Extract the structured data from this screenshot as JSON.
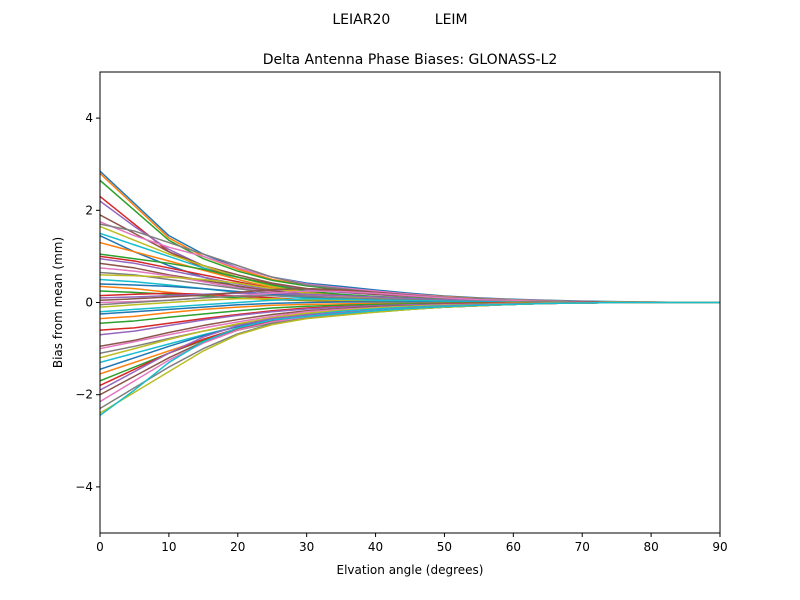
{
  "figure": {
    "suptitle": "LEIAR20          LEIM"
  },
  "chart_data": {
    "type": "line",
    "title": "Delta Antenna Phase Biases: GLONASS-L2",
    "xlabel": "Elvation angle (degrees)",
    "ylabel": "Bias from mean (mm)",
    "xlim": [
      0,
      90
    ],
    "ylim": [
      -5,
      5
    ],
    "xticks": [
      0,
      10,
      20,
      30,
      40,
      50,
      60,
      70,
      80,
      90
    ],
    "yticks": [
      -4,
      -2,
      0,
      2,
      4
    ],
    "ytick_labels": [
      "−4",
      "−2",
      "0",
      "2",
      "4"
    ],
    "grid": false,
    "legend": "none",
    "x": [
      0,
      5,
      10,
      15,
      20,
      25,
      30,
      35,
      40,
      45,
      50,
      55,
      60,
      65,
      70,
      75,
      80,
      85,
      90
    ],
    "colors": [
      "#1f77b4",
      "#ff7f0e",
      "#2ca02c",
      "#d62728",
      "#9467bd",
      "#8c564b",
      "#e377c2",
      "#7f7f7f",
      "#bcbd22",
      "#17becf"
    ],
    "series": [
      {
        "values": [
          2.85,
          2.15,
          1.45,
          1.05,
          0.75,
          0.55,
          0.42,
          0.35,
          0.27,
          0.2,
          0.14,
          0.1,
          0.07,
          0.05,
          0.03,
          0.02,
          0.01,
          0.0,
          0.0
        ]
      },
      {
        "values": [
          2.8,
          2.1,
          1.4,
          1.0,
          0.72,
          0.5,
          0.38,
          0.3,
          0.24,
          0.18,
          0.13,
          0.09,
          0.06,
          0.04,
          0.02,
          0.01,
          0.01,
          0.0,
          0.0
        ]
      },
      {
        "values": [
          2.65,
          2.0,
          1.35,
          0.95,
          0.68,
          0.48,
          0.36,
          0.28,
          0.22,
          0.17,
          0.12,
          0.08,
          0.06,
          0.04,
          0.02,
          0.01,
          0.0,
          0.0,
          0.0
        ]
      },
      {
        "values": [
          2.3,
          1.7,
          1.1,
          0.75,
          0.55,
          0.4,
          0.3,
          0.25,
          0.2,
          0.15,
          0.1,
          0.07,
          0.05,
          0.03,
          0.02,
          0.01,
          0.0,
          0.0,
          0.0
        ]
      },
      {
        "values": [
          2.2,
          1.65,
          1.15,
          0.8,
          0.55,
          0.38,
          0.28,
          0.22,
          0.17,
          0.13,
          0.09,
          0.06,
          0.04,
          0.03,
          0.02,
          0.01,
          0.0,
          0.0,
          0.0
        ]
      },
      {
        "values": [
          1.9,
          1.5,
          1.1,
          0.8,
          0.6,
          0.42,
          0.3,
          0.24,
          0.18,
          0.14,
          0.1,
          0.07,
          0.05,
          0.03,
          0.02,
          0.01,
          0.0,
          0.0,
          0.0
        ]
      },
      {
        "values": [
          1.75,
          1.45,
          1.2,
          1.0,
          0.75,
          0.55,
          0.4,
          0.32,
          0.25,
          0.18,
          0.12,
          0.08,
          0.06,
          0.04,
          0.02,
          0.01,
          0.0,
          0.0,
          0.0
        ]
      },
      {
        "values": [
          1.7,
          1.55,
          1.3,
          1.05,
          0.8,
          0.55,
          0.38,
          0.3,
          0.22,
          0.16,
          0.11,
          0.08,
          0.05,
          0.03,
          0.02,
          0.01,
          0.0,
          0.0,
          0.0
        ]
      },
      {
        "values": [
          1.65,
          1.35,
          1.05,
          0.8,
          0.55,
          0.35,
          0.22,
          0.17,
          0.13,
          0.1,
          0.07,
          0.05,
          0.04,
          0.02,
          0.01,
          0.01,
          0.0,
          0.0,
          0.0
        ]
      },
      {
        "values": [
          1.5,
          1.25,
          1.0,
          0.75,
          0.5,
          0.3,
          0.2,
          0.15,
          0.12,
          0.09,
          0.06,
          0.04,
          0.03,
          0.02,
          0.01,
          0.0,
          0.0,
          0.0,
          0.0
        ]
      },
      {
        "values": [
          1.45,
          1.1,
          0.8,
          0.55,
          0.35,
          0.22,
          0.16,
          0.12,
          0.1,
          0.08,
          0.05,
          0.04,
          0.03,
          0.02,
          0.01,
          0.0,
          0.0,
          0.0,
          0.0
        ]
      },
      {
        "values": [
          1.3,
          1.1,
          0.9,
          0.7,
          0.5,
          0.32,
          0.2,
          0.14,
          0.1,
          0.07,
          0.05,
          0.03,
          0.02,
          0.01,
          0.01,
          0.0,
          0.0,
          0.0,
          0.0
        ]
      },
      {
        "values": [
          1.05,
          0.95,
          0.85,
          0.72,
          0.55,
          0.38,
          0.25,
          0.18,
          0.13,
          0.1,
          0.07,
          0.05,
          0.03,
          0.02,
          0.01,
          0.0,
          0.0,
          0.0,
          0.0
        ]
      },
      {
        "values": [
          1.0,
          0.9,
          0.75,
          0.6,
          0.45,
          0.3,
          0.2,
          0.15,
          0.11,
          0.08,
          0.05,
          0.04,
          0.03,
          0.02,
          0.01,
          0.0,
          0.0,
          0.0,
          0.0
        ]
      },
      {
        "values": [
          0.95,
          0.85,
          0.7,
          0.55,
          0.4,
          0.28,
          0.18,
          0.13,
          0.1,
          0.07,
          0.05,
          0.03,
          0.02,
          0.01,
          0.01,
          0.0,
          0.0,
          0.0,
          0.0
        ]
      },
      {
        "values": [
          0.85,
          0.75,
          0.6,
          0.48,
          0.36,
          0.25,
          0.17,
          0.12,
          0.09,
          0.07,
          0.05,
          0.03,
          0.02,
          0.01,
          0.01,
          0.0,
          0.0,
          0.0,
          0.0
        ]
      },
      {
        "values": [
          0.75,
          0.68,
          0.58,
          0.45,
          0.32,
          0.22,
          0.15,
          0.11,
          0.08,
          0.06,
          0.04,
          0.03,
          0.02,
          0.01,
          0.0,
          0.0,
          0.0,
          0.0,
          0.0
        ]
      },
      {
        "values": [
          0.65,
          0.6,
          0.5,
          0.4,
          0.3,
          0.2,
          0.14,
          0.1,
          0.07,
          0.05,
          0.04,
          0.03,
          0.02,
          0.01,
          0.0,
          0.0,
          0.0,
          0.0,
          0.0
        ]
      },
      {
        "values": [
          0.6,
          0.58,
          0.55,
          0.5,
          0.42,
          0.3,
          0.2,
          0.14,
          0.1,
          0.07,
          0.05,
          0.03,
          0.02,
          0.01,
          0.0,
          0.0,
          0.0,
          0.0,
          0.0
        ]
      },
      {
        "values": [
          0.5,
          0.45,
          0.38,
          0.3,
          0.22,
          0.15,
          0.1,
          0.08,
          0.06,
          0.04,
          0.03,
          0.02,
          0.01,
          0.01,
          0.0,
          0.0,
          0.0,
          0.0,
          0.0
        ]
      },
      {
        "values": [
          0.4,
          0.38,
          0.35,
          0.3,
          0.24,
          0.18,
          0.12,
          0.09,
          0.07,
          0.05,
          0.03,
          0.02,
          0.01,
          0.01,
          0.0,
          0.0,
          0.0,
          0.0,
          0.0
        ]
      },
      {
        "values": [
          0.35,
          0.3,
          0.22,
          0.15,
          0.1,
          0.06,
          0.04,
          0.03,
          0.02,
          0.02,
          0.01,
          0.01,
          0.0,
          0.0,
          0.0,
          0.0,
          0.0,
          0.0,
          0.0
        ]
      },
      {
        "values": [
          0.25,
          0.22,
          0.18,
          0.14,
          0.1,
          0.07,
          0.05,
          0.04,
          0.03,
          0.02,
          0.01,
          0.01,
          0.0,
          0.0,
          0.0,
          0.0,
          0.0,
          0.0,
          0.0
        ]
      },
      {
        "values": [
          0.15,
          0.18,
          0.2,
          0.18,
          0.14,
          0.1,
          0.06,
          0.04,
          0.03,
          0.02,
          0.01,
          0.01,
          0.0,
          0.0,
          0.0,
          0.0,
          0.0,
          0.0,
          0.0
        ]
      },
      {
        "values": [
          0.1,
          0.12,
          0.15,
          0.18,
          0.2,
          0.2,
          0.18,
          0.15,
          0.12,
          0.09,
          0.06,
          0.04,
          0.02,
          0.01,
          0.0,
          0.0,
          0.0,
          0.0,
          0.0
        ]
      },
      {
        "values": [
          0.05,
          0.08,
          0.12,
          0.16,
          0.22,
          0.28,
          0.3,
          0.28,
          0.22,
          0.16,
          0.1,
          0.06,
          0.03,
          0.02,
          0.01,
          0.0,
          0.0,
          0.0,
          0.0
        ]
      },
      {
        "values": [
          0.0,
          0.02,
          0.05,
          0.1,
          0.15,
          0.2,
          0.25,
          0.24,
          0.2,
          0.15,
          0.1,
          0.06,
          0.04,
          0.02,
          0.01,
          0.0,
          0.0,
          0.0,
          0.0
        ]
      },
      {
        "values": [
          -0.05,
          0.0,
          0.05,
          0.1,
          0.14,
          0.15,
          0.13,
          0.1,
          0.08,
          0.06,
          0.04,
          0.03,
          0.02,
          0.01,
          0.0,
          0.0,
          0.0,
          0.0,
          0.0
        ]
      },
      {
        "values": [
          -0.1,
          -0.05,
          0.0,
          0.05,
          0.08,
          0.08,
          0.06,
          0.05,
          0.04,
          0.03,
          0.02,
          0.01,
          0.01,
          0.0,
          0.0,
          0.0,
          0.0,
          0.0,
          0.0
        ]
      },
      {
        "values": [
          -0.2,
          -0.15,
          -0.1,
          -0.05,
          0.0,
          0.05,
          0.08,
          0.07,
          0.05,
          0.04,
          0.03,
          0.02,
          0.01,
          0.0,
          0.0,
          0.0,
          0.0,
          0.0,
          0.0
        ]
      },
      {
        "values": [
          -0.25,
          -0.2,
          -0.15,
          -0.1,
          -0.05,
          -0.02,
          0.0,
          0.01,
          0.01,
          0.01,
          0.0,
          0.0,
          0.0,
          0.0,
          0.0,
          0.0,
          0.0,
          0.0,
          0.0
        ]
      },
      {
        "values": [
          -0.35,
          -0.3,
          -0.22,
          -0.15,
          -0.1,
          -0.06,
          -0.04,
          -0.03,
          -0.02,
          -0.02,
          -0.01,
          -0.01,
          0.0,
          0.0,
          0.0,
          0.0,
          0.0,
          0.0,
          0.0
        ]
      },
      {
        "values": [
          -0.45,
          -0.4,
          -0.32,
          -0.25,
          -0.18,
          -0.12,
          -0.08,
          -0.06,
          -0.04,
          -0.03,
          -0.02,
          -0.01,
          -0.01,
          0.0,
          0.0,
          0.0,
          0.0,
          0.0,
          0.0
        ]
      },
      {
        "values": [
          -0.6,
          -0.55,
          -0.45,
          -0.35,
          -0.26,
          -0.18,
          -0.12,
          -0.09,
          -0.07,
          -0.05,
          -0.03,
          -0.02,
          -0.01,
          -0.01,
          0.0,
          0.0,
          0.0,
          0.0,
          0.0
        ]
      },
      {
        "values": [
          -0.7,
          -0.62,
          -0.5,
          -0.38,
          -0.28,
          -0.2,
          -0.14,
          -0.1,
          -0.07,
          -0.05,
          -0.04,
          -0.03,
          -0.02,
          -0.01,
          0.0,
          0.0,
          0.0,
          0.0,
          0.0
        ]
      },
      {
        "values": [
          -0.95,
          -0.82,
          -0.65,
          -0.5,
          -0.37,
          -0.26,
          -0.18,
          -0.13,
          -0.09,
          -0.07,
          -0.05,
          -0.03,
          -0.02,
          -0.01,
          0.0,
          0.0,
          0.0,
          0.0,
          0.0
        ]
      },
      {
        "values": [
          -1.0,
          -0.85,
          -0.7,
          -0.55,
          -0.42,
          -0.3,
          -0.2,
          -0.15,
          -0.11,
          -0.08,
          -0.05,
          -0.04,
          -0.02,
          -0.01,
          -0.01,
          0.0,
          0.0,
          0.0,
          0.0
        ]
      },
      {
        "values": [
          -1.1,
          -0.95,
          -0.78,
          -0.62,
          -0.48,
          -0.35,
          -0.25,
          -0.18,
          -0.13,
          -0.09,
          -0.06,
          -0.04,
          -0.03,
          -0.02,
          -0.01,
          0.0,
          0.0,
          0.0,
          0.0
        ]
      },
      {
        "values": [
          -1.2,
          -1.0,
          -0.8,
          -0.62,
          -0.46,
          -0.33,
          -0.23,
          -0.17,
          -0.12,
          -0.08,
          -0.06,
          -0.04,
          -0.02,
          -0.01,
          -0.01,
          0.0,
          0.0,
          0.0,
          0.0
        ]
      },
      {
        "values": [
          -1.3,
          -1.1,
          -0.9,
          -0.7,
          -0.52,
          -0.38,
          -0.27,
          -0.19,
          -0.14,
          -0.1,
          -0.07,
          -0.05,
          -0.03,
          -0.02,
          -0.01,
          0.0,
          0.0,
          0.0,
          0.0
        ]
      },
      {
        "values": [
          -1.45,
          -1.2,
          -0.95,
          -0.72,
          -0.52,
          -0.38,
          -0.3,
          -0.24,
          -0.18,
          -0.13,
          -0.09,
          -0.06,
          -0.04,
          -0.02,
          -0.01,
          0.0,
          0.0,
          0.0,
          0.0
        ]
      },
      {
        "values": [
          -1.55,
          -1.3,
          -1.05,
          -0.8,
          -0.58,
          -0.42,
          -0.32,
          -0.26,
          -0.2,
          -0.15,
          -0.1,
          -0.07,
          -0.04,
          -0.02,
          -0.01,
          0.0,
          0.0,
          0.0,
          0.0
        ]
      },
      {
        "values": [
          -1.7,
          -1.4,
          -1.1,
          -0.82,
          -0.6,
          -0.44,
          -0.34,
          -0.27,
          -0.21,
          -0.15,
          -0.1,
          -0.07,
          -0.04,
          -0.02,
          -0.01,
          0.0,
          0.0,
          0.0,
          0.0
        ]
      },
      {
        "values": [
          -1.8,
          -1.45,
          -1.1,
          -0.8,
          -0.56,
          -0.4,
          -0.3,
          -0.24,
          -0.18,
          -0.13,
          -0.09,
          -0.06,
          -0.04,
          -0.02,
          -0.01,
          0.0,
          0.0,
          0.0,
          0.0
        ]
      },
      {
        "values": [
          -1.9,
          -1.5,
          -1.1,
          -0.75,
          -0.5,
          -0.35,
          -0.27,
          -0.22,
          -0.17,
          -0.12,
          -0.08,
          -0.05,
          -0.03,
          -0.02,
          -0.01,
          0.0,
          0.0,
          0.0,
          0.0
        ]
      },
      {
        "values": [
          -2.0,
          -1.6,
          -1.2,
          -0.85,
          -0.6,
          -0.42,
          -0.32,
          -0.26,
          -0.2,
          -0.14,
          -0.1,
          -0.07,
          -0.04,
          -0.02,
          -0.01,
          0.0,
          0.0,
          0.0,
          0.0
        ]
      },
      {
        "values": [
          -2.15,
          -1.7,
          -1.25,
          -0.88,
          -0.6,
          -0.42,
          -0.32,
          -0.25,
          -0.19,
          -0.14,
          -0.09,
          -0.06,
          -0.04,
          -0.02,
          -0.01,
          0.0,
          0.0,
          0.0,
          0.0
        ]
      },
      {
        "values": [
          -2.3,
          -1.85,
          -1.4,
          -1.0,
          -0.68,
          -0.46,
          -0.34,
          -0.27,
          -0.2,
          -0.14,
          -0.1,
          -0.07,
          -0.04,
          -0.02,
          -0.01,
          0.0,
          0.0,
          0.0,
          0.0
        ]
      },
      {
        "values": [
          -2.4,
          -1.95,
          -1.5,
          -1.05,
          -0.7,
          -0.48,
          -0.35,
          -0.28,
          -0.21,
          -0.15,
          -0.1,
          -0.07,
          -0.04,
          -0.02,
          -0.01,
          0.0,
          0.0,
          0.0,
          0.0
        ]
      },
      {
        "values": [
          -2.45,
          -1.9,
          -1.3,
          -0.85,
          -0.55,
          -0.38,
          -0.3,
          -0.24,
          -0.18,
          -0.13,
          -0.09,
          -0.06,
          -0.04,
          -0.02,
          -0.01,
          0.0,
          0.0,
          0.0,
          0.0
        ]
      }
    ]
  }
}
